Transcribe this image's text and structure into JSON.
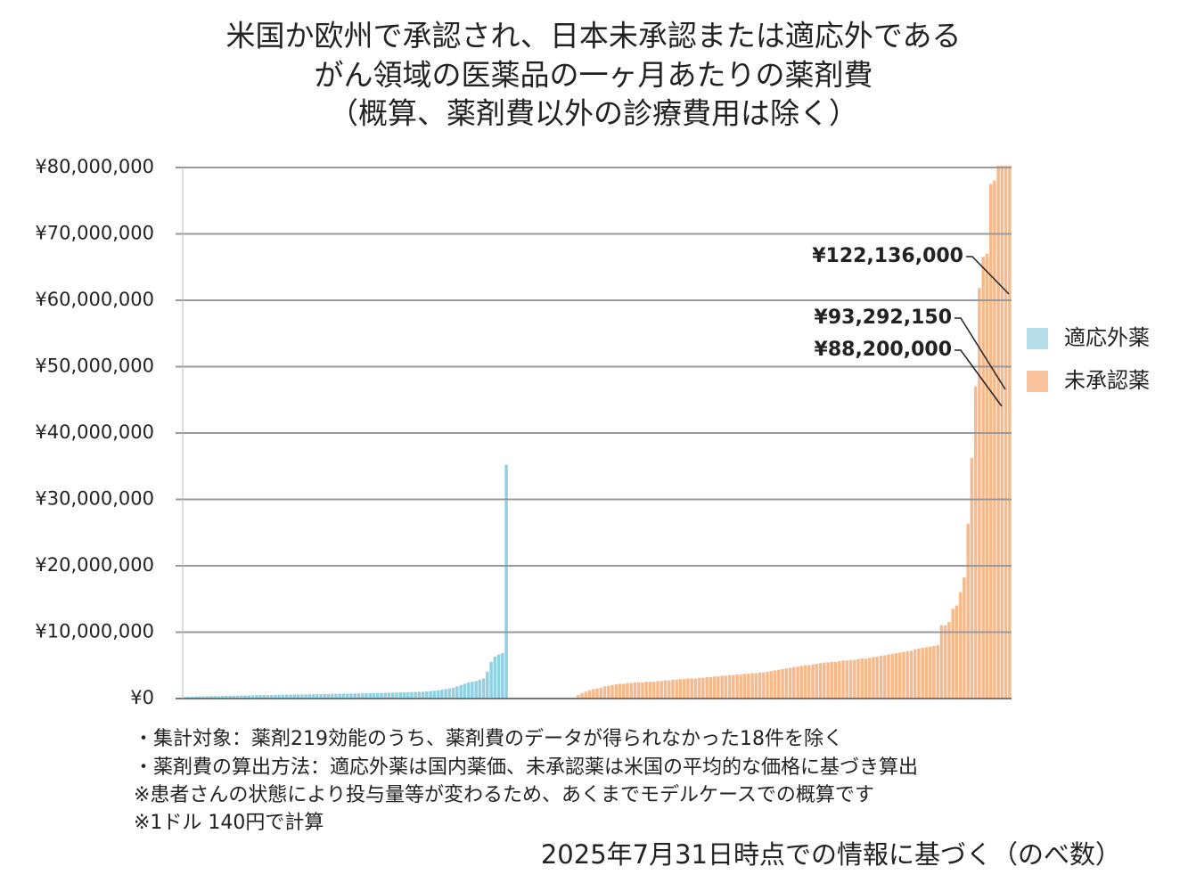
{
  "chart_data": {
    "type": "bar",
    "title": [
      "米国か欧州で承認され、日本未承認または適応外である",
      "がん領域の医薬品の一ヶ月あたりの薬剤費",
      "（概算、薬剤費以外の診療費用は除く）"
    ],
    "notes": [
      "・集計対象：薬剤219効能のうち、薬剤費のデータが得られなかった18件を除く",
      "・薬剤費の算出方法：適応外薬は国内薬価、未承認薬は米国の平均的な価格に基づき算出",
      "※患者さんの状態により投与量等が変わるため、あくまでモデルケースでの概算です",
      "※1ドル 140円で計算"
    ],
    "source": "2025年7月31日時点での情報に基づく（のべ数）",
    "ylim": [
      0,
      80000000
    ],
    "yticks": [
      {
        "value": 0,
        "label": "¥0"
      },
      {
        "value": 10000000,
        "label": "¥10,000,000"
      },
      {
        "value": 20000000,
        "label": "¥20,000,000"
      },
      {
        "value": 30000000,
        "label": "¥30,000,000"
      },
      {
        "value": 40000000,
        "label": "¥40,000,000"
      },
      {
        "value": 50000000,
        "label": "¥50,000,000"
      },
      {
        "value": 60000000,
        "label": "¥60,000,000"
      },
      {
        "value": 70000000,
        "label": "¥70,000,000"
      },
      {
        "value": 80000000,
        "label": "¥80,000,000"
      }
    ],
    "grid": true,
    "legend": "right",
    "series": [
      {
        "name": "適応外薬",
        "color": "#8fd0e2",
        "legend_color": "#b4dde8",
        "values": [
          200000,
          250000,
          250000,
          280000,
          300000,
          300000,
          320000,
          330000,
          350000,
          350000,
          360000,
          380000,
          400000,
          400000,
          420000,
          430000,
          450000,
          450000,
          460000,
          480000,
          500000,
          500000,
          500000,
          520000,
          530000,
          550000,
          550000,
          560000,
          570000,
          580000,
          600000,
          600000,
          600000,
          610000,
          620000,
          630000,
          640000,
          650000,
          650000,
          660000,
          680000,
          700000,
          700000,
          710000,
          720000,
          730000,
          750000,
          760000,
          780000,
          800000,
          800000,
          810000,
          820000,
          840000,
          850000,
          870000,
          880000,
          900000,
          900000,
          920000,
          950000,
          970000,
          1000000,
          1000000,
          1050000,
          1100000,
          1150000,
          1200000,
          1300000,
          1400000,
          1500000,
          1600000,
          1800000,
          2000000,
          2200000,
          2400000,
          2500000,
          2600000,
          2800000,
          3000000,
          4000000,
          5500000,
          6300000,
          6600000,
          6800000,
          35200000
        ]
      },
      {
        "name": "未承認薬",
        "color": "#f7b98a",
        "legend_color": "#f8c39c",
        "values": [
          500000,
          800000,
          1000000,
          1200000,
          1400000,
          1500000,
          1600000,
          1800000,
          1900000,
          2000000,
          2100000,
          2200000,
          2200000,
          2300000,
          2300000,
          2400000,
          2400000,
          2400000,
          2500000,
          2500000,
          2500000,
          2600000,
          2600000,
          2700000,
          2700000,
          2800000,
          2800000,
          2900000,
          2900000,
          3000000,
          3000000,
          3000000,
          3100000,
          3100000,
          3200000,
          3200000,
          3300000,
          3300000,
          3400000,
          3400000,
          3500000,
          3500000,
          3600000,
          3600000,
          3700000,
          3700000,
          3800000,
          3800000,
          3900000,
          3900000,
          4000000,
          4100000,
          4200000,
          4300000,
          4400000,
          4500000,
          4600000,
          4700000,
          4800000,
          4900000,
          5000000,
          5000000,
          5100000,
          5200000,
          5300000,
          5400000,
          5400000,
          5500000,
          5500000,
          5600000,
          5700000,
          5700000,
          5800000,
          5800000,
          5900000,
          6000000,
          6000000,
          6100000,
          6200000,
          6300000,
          6400000,
          6500000,
          6600000,
          6700000,
          6800000,
          6900000,
          7000000,
          7100000,
          7200000,
          7400000,
          7500000,
          7600000,
          7700000,
          7800000,
          7900000,
          8000000,
          11000000,
          11000000,
          11500000,
          13500000,
          14000000,
          16000000,
          18200000,
          26300000,
          36200000,
          47000000,
          61800000,
          66500000,
          67000000,
          77500000,
          78000000,
          80500000,
          88200000,
          93292150,
          122136000
        ],
        "value_labels": [
          null,
          null,
          null,
          null,
          null,
          null,
          null,
          null,
          null,
          null,
          null,
          null,
          null,
          null,
          null,
          null,
          null,
          null,
          null,
          null,
          null,
          null,
          null,
          null,
          null,
          null,
          null,
          null,
          null,
          null,
          null,
          null,
          null,
          null,
          null,
          null,
          null,
          null,
          null,
          null,
          null,
          null,
          null,
          null,
          null,
          null,
          null,
          null,
          null,
          null,
          null,
          null,
          null,
          null,
          null,
          null,
          null,
          null,
          null,
          null,
          null,
          null,
          null,
          null,
          null,
          null,
          null,
          null,
          null,
          null,
          null,
          null,
          null,
          null,
          null,
          null,
          null,
          null,
          null,
          null,
          null,
          null,
          null,
          null,
          null,
          null,
          null,
          null,
          null,
          null,
          null,
          null,
          null,
          null,
          null,
          null,
          null,
          null,
          null,
          null,
          null,
          null,
          null,
          null,
          null,
          null,
          null,
          null,
          null,
          null,
          null,
          null,
          "¥88,200,000",
          "¥93,292,150",
          "¥122,136,000"
        ]
      }
    ]
  }
}
